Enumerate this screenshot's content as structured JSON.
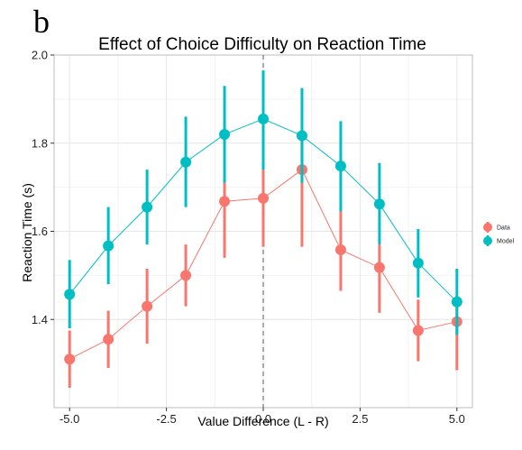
{
  "panel_label": "b",
  "chart_data": {
    "type": "line",
    "title": "Effect of Choice Difficulty on Reaction Time",
    "xlabel": "Value Difference (L - R)",
    "ylabel": "Reaction Time (s)",
    "xlim": [
      -5.4,
      5.4
    ],
    "ylim": [
      1.2,
      2.0
    ],
    "x_ticks": [
      -5.0,
      -2.5,
      0.0,
      2.5,
      5.0
    ],
    "x_tick_labels": [
      "-5.0",
      "-2.5",
      "0.0",
      "2.5",
      "5.0"
    ],
    "y_ticks": [
      1.4,
      1.6,
      1.8,
      2.0
    ],
    "y_tick_labels": [
      "1.4",
      "1.6",
      "1.8",
      "2.0"
    ],
    "vline_x": 0,
    "grid": true,
    "legend_position": "right",
    "x": [
      -5,
      -4,
      -3,
      -2,
      -1,
      0,
      1,
      2,
      3,
      4,
      5
    ],
    "series": [
      {
        "name": "Data",
        "color": "#F8766D",
        "values": [
          1.31,
          1.355,
          1.43,
          1.5,
          1.668,
          1.675,
          1.74,
          1.558,
          1.518,
          1.375,
          1.395
        ],
        "err_low": [
          1.245,
          1.29,
          1.345,
          1.43,
          1.54,
          1.565,
          1.565,
          1.465,
          1.415,
          1.305,
          1.285
        ],
        "err_high": [
          1.375,
          1.42,
          1.515,
          1.57,
          1.71,
          1.74,
          1.82,
          1.645,
          1.57,
          1.445,
          1.43
        ]
      },
      {
        "name": "Model",
        "color": "#00BFC4",
        "values": [
          1.457,
          1.567,
          1.655,
          1.757,
          1.82,
          1.855,
          1.817,
          1.748,
          1.662,
          1.528,
          1.44
        ],
        "err_low": [
          1.38,
          1.48,
          1.57,
          1.655,
          1.71,
          1.74,
          1.71,
          1.645,
          1.57,
          1.45,
          1.365
        ],
        "err_high": [
          1.535,
          1.655,
          1.74,
          1.86,
          1.93,
          1.965,
          1.925,
          1.85,
          1.755,
          1.605,
          1.515
        ]
      }
    ]
  }
}
